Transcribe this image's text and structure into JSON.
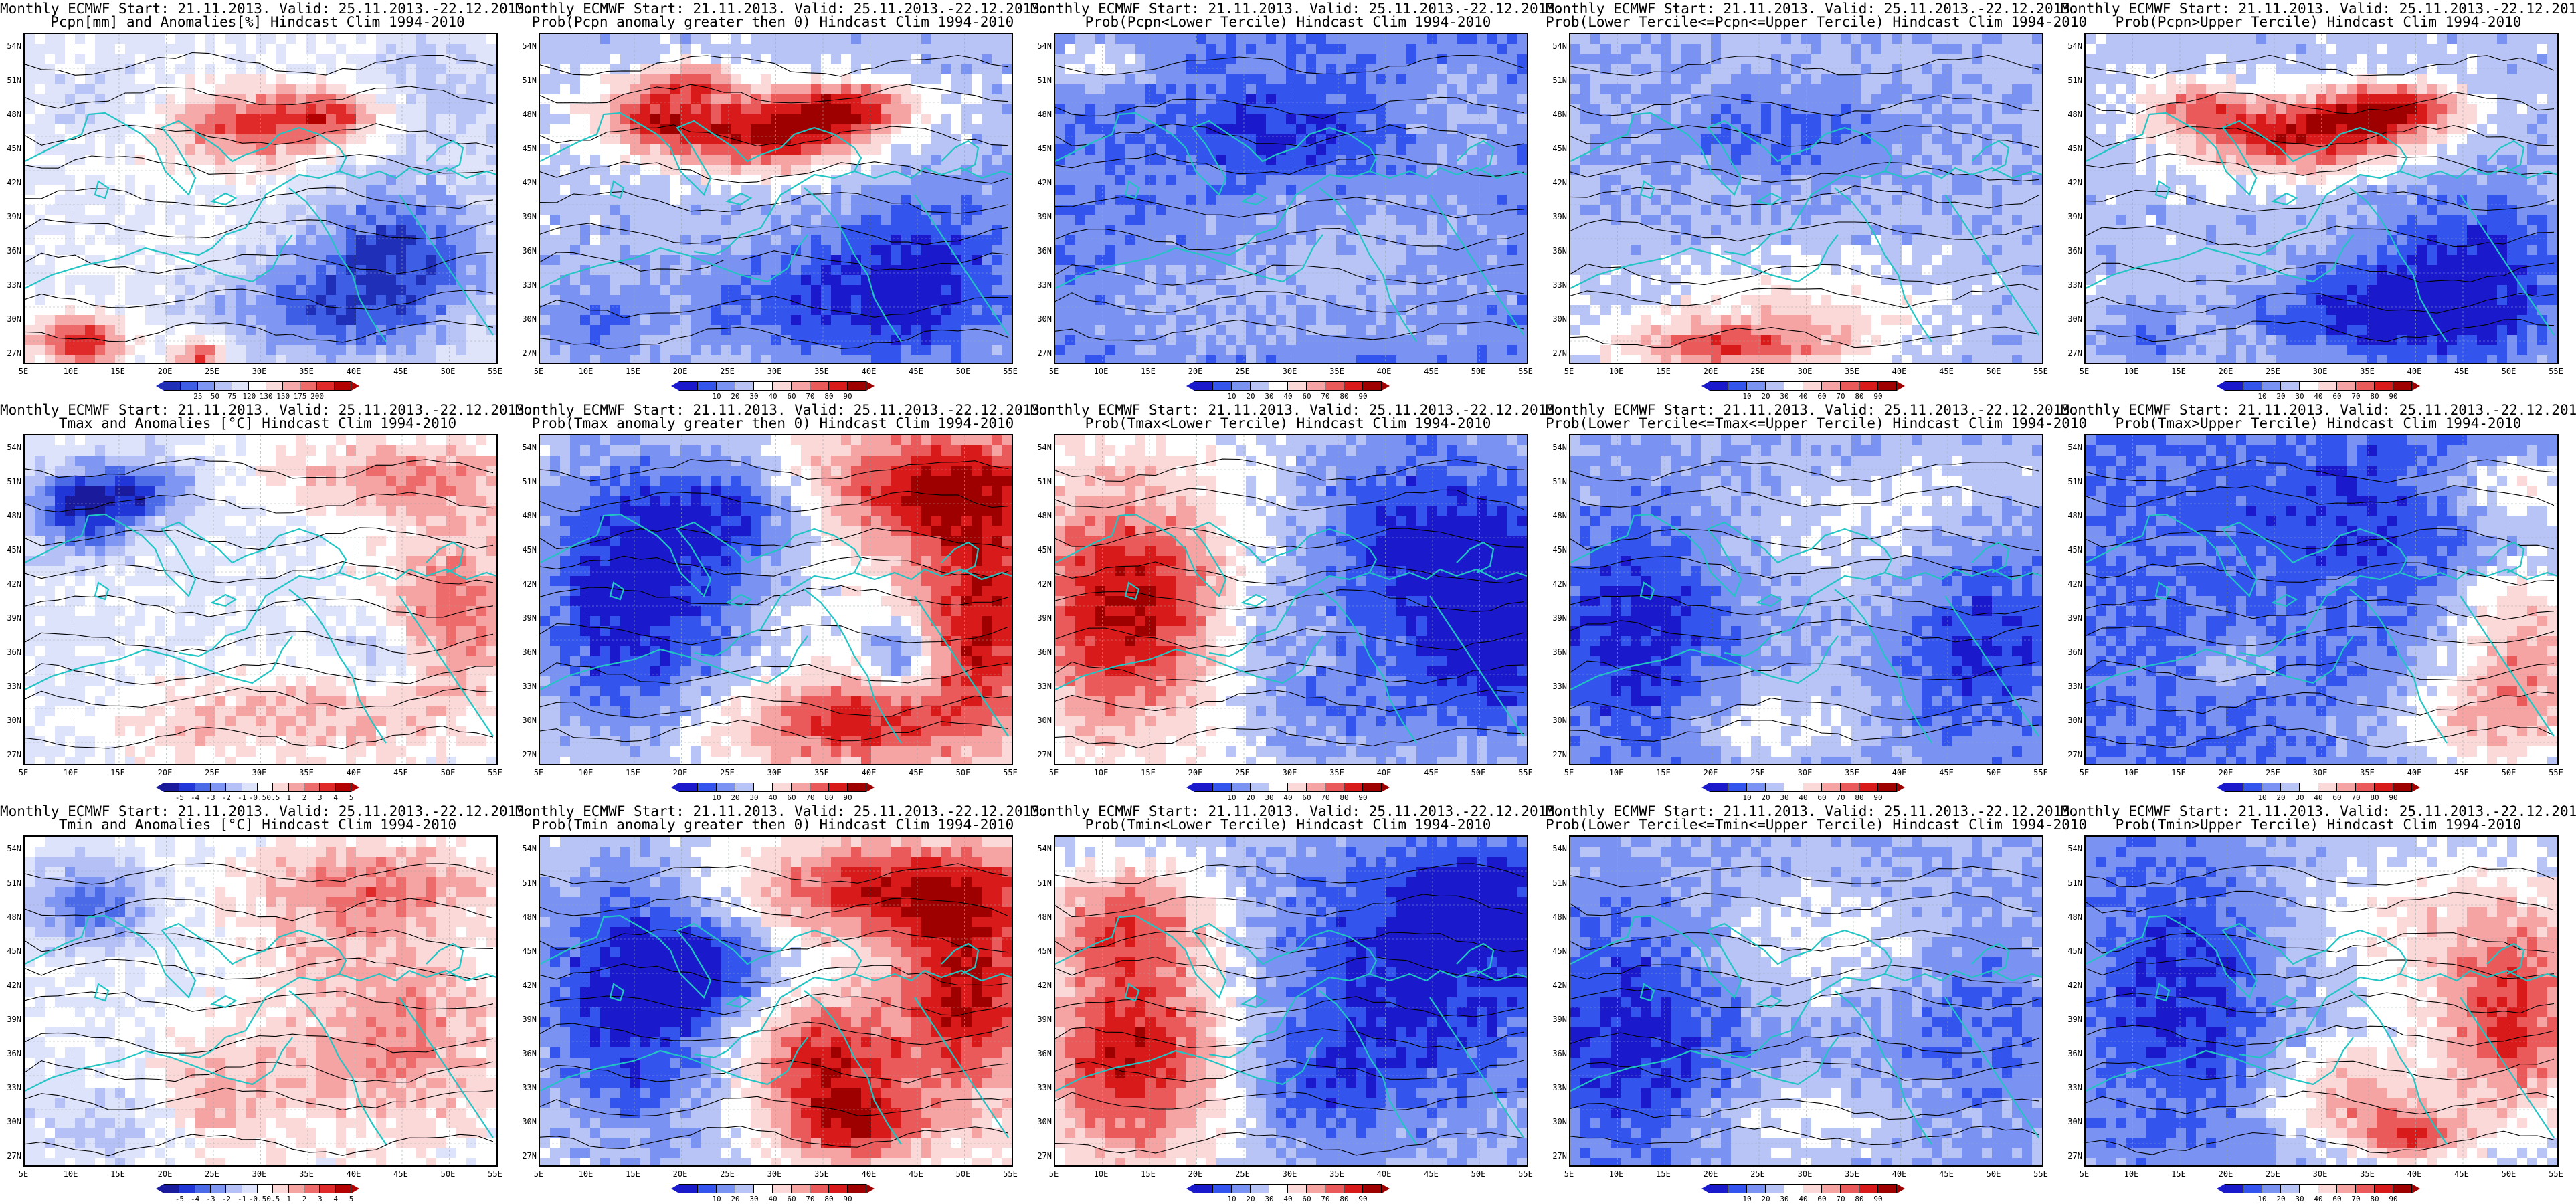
{
  "header_line": "Monthly ECMWF Start: 21.11.2013. Valid: 25.11.2013.-22.12.2013.",
  "lat_labels": [
    "54N",
    "51N",
    "48N",
    "45N",
    "42N",
    "39N",
    "36N",
    "33N",
    "30N",
    "27N"
  ],
  "lon_labels": [
    "5E",
    "10E",
    "15E",
    "20E",
    "25E",
    "30E",
    "35E",
    "40E",
    "45E",
    "50E",
    "55E"
  ],
  "colors": {
    "coast": "#22c4c4",
    "contour": "#000000",
    "palettes": {
      "anom_precip": [
        "#1f2fb8",
        "#3f5ee6",
        "#7f96f2",
        "#b8c4f6",
        "#dfe4fb",
        "#ffffff",
        "#fbdcdc",
        "#f5a9a9",
        "#ee6b6b",
        "#e02a2a",
        "#b30000"
      ],
      "anom_temp": [
        "#1a1a9c",
        "#2036d6",
        "#4a6ae8",
        "#7f96f2",
        "#b4c0f6",
        "#dde3fb",
        "#ffffff",
        "#fbd9d9",
        "#f5a3a3",
        "#ee6b6b",
        "#e02a2a",
        "#b30000"
      ],
      "prob": [
        "#1a1acc",
        "#3355ee",
        "#7a92f2",
        "#b8c4f6",
        "#ffffff",
        "#fbd9d9",
        "#f5a3a3",
        "#ea5a5a",
        "#d91a1a",
        "#9e0000"
      ]
    }
  },
  "panels": [
    {
      "row": 0,
      "col": 0,
      "subtitle": "Pcpn[mm] and Anomalies[%] Hindcast Clim 1994-2010",
      "palette": "anom_precip",
      "ticks": [
        "25",
        "50",
        "75",
        "120",
        "130",
        "150",
        "175",
        "200"
      ],
      "field": "precip_anom"
    },
    {
      "row": 0,
      "col": 1,
      "subtitle": "Prob(Pcpn anomaly greater then 0) Hindcast Clim 1994-2010",
      "palette": "prob",
      "ticks": [
        "10",
        "20",
        "30",
        "40",
        "60",
        "70",
        "80",
        "90"
      ],
      "field": "precip_pos"
    },
    {
      "row": 0,
      "col": 2,
      "subtitle": "Prob(Pcpn<Lower Tercile) Hindcast Clim 1994-2010",
      "palette": "prob",
      "ticks": [
        "10",
        "20",
        "30",
        "40",
        "60",
        "70",
        "80",
        "90"
      ],
      "field": "precip_low"
    },
    {
      "row": 0,
      "col": 3,
      "subtitle": "Prob(Lower Tercile<=Pcpn<=Upper Tercile) Hindcast Clim 1994-2010",
      "palette": "prob",
      "ticks": [
        "10",
        "20",
        "30",
        "40",
        "60",
        "70",
        "80",
        "90"
      ],
      "field": "precip_mid"
    },
    {
      "row": 0,
      "col": 4,
      "subtitle": "Prob(Pcpn>Upper Tercile) Hindcast Clim 1994-2010",
      "palette": "prob",
      "ticks": [
        "10",
        "20",
        "30",
        "40",
        "60",
        "70",
        "80",
        "90"
      ],
      "field": "precip_up"
    },
    {
      "row": 1,
      "col": 0,
      "subtitle": "Tmax and Anomalies [°C] Hindcast Clim 1994-2010",
      "palette": "anom_temp",
      "ticks": [
        "-5",
        "-4",
        "-3",
        "-2",
        "-1",
        "-0.5",
        "0.5",
        "1",
        "2",
        "3",
        "4",
        "5"
      ],
      "field": "tmax_anom"
    },
    {
      "row": 1,
      "col": 1,
      "subtitle": "Prob(Tmax anomaly greater then 0) Hindcast Clim 1994-2010",
      "palette": "prob",
      "ticks": [
        "10",
        "20",
        "30",
        "40",
        "60",
        "70",
        "80",
        "90"
      ],
      "field": "tmax_pos"
    },
    {
      "row": 1,
      "col": 2,
      "subtitle": "Prob(Tmax<Lower Tercile) Hindcast Clim 1994-2010",
      "palette": "prob",
      "ticks": [
        "10",
        "20",
        "30",
        "40",
        "60",
        "70",
        "80",
        "90"
      ],
      "field": "tmax_low"
    },
    {
      "row": 1,
      "col": 3,
      "subtitle": "Prob(Lower Tercile<=Tmax<=Upper Tercile) Hindcast Clim 1994-2010",
      "palette": "prob",
      "ticks": [
        "10",
        "20",
        "30",
        "40",
        "60",
        "70",
        "80",
        "90"
      ],
      "field": "tmax_mid"
    },
    {
      "row": 1,
      "col": 4,
      "subtitle": "Prob(Tmax>Upper Tercile) Hindcast Clim 1994-2010",
      "palette": "prob",
      "ticks": [
        "10",
        "20",
        "30",
        "40",
        "60",
        "70",
        "80",
        "90"
      ],
      "field": "tmax_up"
    },
    {
      "row": 2,
      "col": 0,
      "subtitle": "Tmin and Anomalies [°C] Hindcast Clim 1994-2010",
      "palette": "anom_temp",
      "ticks": [
        "-5",
        "-4",
        "-3",
        "-2",
        "-1",
        "-0.5",
        "0.5",
        "1",
        "2",
        "3",
        "4",
        "5"
      ],
      "field": "tmin_anom"
    },
    {
      "row": 2,
      "col": 1,
      "subtitle": "Prob(Tmin anomaly greater then 0) Hindcast Clim 1994-2010",
      "palette": "prob",
      "ticks": [
        "10",
        "20",
        "30",
        "40",
        "60",
        "70",
        "80",
        "90"
      ],
      "field": "tmin_pos"
    },
    {
      "row": 2,
      "col": 2,
      "subtitle": "Prob(Tmin<Lower Tercile) Hindcast Clim 1994-2010",
      "palette": "prob",
      "ticks": [
        "10",
        "20",
        "30",
        "40",
        "60",
        "70",
        "80",
        "90"
      ],
      "field": "tmin_low"
    },
    {
      "row": 2,
      "col": 3,
      "subtitle": "Prob(Lower Tercile<=Tmin<=Upper Tercile) Hindcast Clim 1994-2010",
      "palette": "prob",
      "ticks": [
        "10",
        "20",
        "30",
        "40",
        "60",
        "70",
        "80",
        "90"
      ],
      "field": "tmin_mid"
    },
    {
      "row": 2,
      "col": 4,
      "subtitle": "Prob(Tmin>Upper Tercile) Hindcast Clim 1994-2010",
      "palette": "prob",
      "ticks": [
        "10",
        "20",
        "30",
        "40",
        "60",
        "70",
        "80",
        "90"
      ],
      "field": "tmin_up"
    }
  ]
}
